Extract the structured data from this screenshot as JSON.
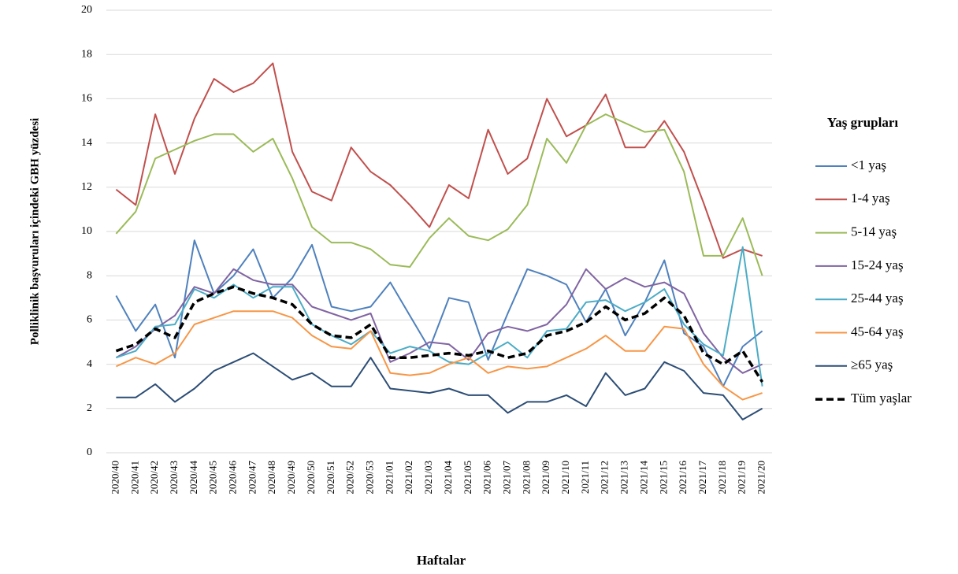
{
  "chart_data": {
    "type": "line",
    "y_label": "Polliklinik başvuruları içindeki GBH  yüzdesi",
    "x_label": "Haftalar",
    "legend_title": "Yaş grupları",
    "legend_position": "right",
    "grid": true,
    "categories": [
      "2020/40",
      "2020/41",
      "2020/42",
      "2020/43",
      "2020/44",
      "2020/45",
      "2020/46",
      "2020/47",
      "2020/48",
      "2020/49",
      "2020/50",
      "2020/51",
      "2020/52",
      "2020/53",
      "2021/01",
      "2021/02",
      "2021/03",
      "2021/04",
      "2021/05",
      "2021/06",
      "2021/07",
      "2021/08",
      "2021/09",
      "2021/10",
      "2021/11",
      "2021/12",
      "2021/13",
      "2021/14",
      "2021/15",
      "2021/16",
      "2021/17",
      "2021/18",
      "2021/19",
      "2021/20"
    ],
    "ylim": [
      0,
      20
    ],
    "yticks": [
      0,
      2,
      4,
      6,
      8,
      10,
      12,
      14,
      16,
      18,
      20
    ],
    "series": [
      {
        "name": "<1 yaş",
        "color": "#4f81bd",
        "values": [
          7.1,
          5.5,
          6.7,
          4.3,
          9.6,
          7.2,
          8.0,
          9.2,
          7.0,
          7.9,
          9.4,
          6.6,
          6.4,
          6.6,
          7.7,
          6.2,
          4.7,
          7.0,
          6.8,
          4.2,
          6.3,
          8.3,
          8.0,
          7.6,
          5.9,
          7.4,
          5.3,
          6.8,
          8.7,
          5.4,
          4.8,
          3.0,
          4.8,
          5.5
        ]
      },
      {
        "name": "1-4 yaş",
        "color": "#c0504d",
        "values": [
          11.9,
          11.2,
          15.3,
          12.6,
          15.1,
          16.9,
          16.3,
          16.7,
          17.6,
          13.6,
          11.8,
          11.4,
          13.8,
          12.7,
          12.1,
          11.2,
          10.2,
          12.1,
          11.5,
          14.6,
          12.6,
          13.3,
          16.0,
          14.3,
          14.8,
          16.2,
          13.8,
          13.8,
          15.0,
          13.6,
          11.3,
          8.8,
          9.2,
          8.9
        ]
      },
      {
        "name": "5-14 yaş",
        "color": "#9bbb59",
        "values": [
          9.9,
          10.9,
          13.3,
          13.7,
          14.1,
          14.4,
          14.4,
          13.6,
          14.2,
          12.4,
          10.2,
          9.5,
          9.5,
          9.2,
          8.5,
          8.4,
          9.7,
          10.6,
          9.8,
          9.6,
          10.1,
          11.2,
          14.2,
          13.1,
          14.8,
          15.3,
          14.9,
          14.5,
          14.6,
          12.7,
          8.9,
          8.9,
          10.6,
          8.0
        ]
      },
      {
        "name": "15-24 yaş",
        "color": "#8064a2",
        "values": [
          4.3,
          4.8,
          5.6,
          6.2,
          7.5,
          7.2,
          8.3,
          7.8,
          7.6,
          7.6,
          6.6,
          6.3,
          6.0,
          6.3,
          4.1,
          4.5,
          5.0,
          4.9,
          4.2,
          5.4,
          5.7,
          5.5,
          5.8,
          6.7,
          8.3,
          7.4,
          7.9,
          7.5,
          7.7,
          7.2,
          5.4,
          4.3,
          3.6,
          4.0
        ]
      },
      {
        "name": "25-44 yaş",
        "color": "#4bacc6",
        "values": [
          4.3,
          4.6,
          5.7,
          5.8,
          7.4,
          7.0,
          7.6,
          7.0,
          7.5,
          7.5,
          5.8,
          5.3,
          4.9,
          5.5,
          4.5,
          4.8,
          4.6,
          4.1,
          4.0,
          4.5,
          5.0,
          4.3,
          5.5,
          5.6,
          6.8,
          6.9,
          6.4,
          6.8,
          7.4,
          5.8,
          4.9,
          4.4,
          9.3,
          3.0
        ]
      },
      {
        "name": "45-64 yaş",
        "color": "#f79646",
        "values": [
          3.9,
          4.3,
          4.0,
          4.5,
          5.8,
          6.1,
          6.4,
          6.4,
          6.4,
          6.1,
          5.3,
          4.8,
          4.7,
          5.5,
          3.6,
          3.5,
          3.6,
          4.0,
          4.3,
          3.6,
          3.9,
          3.8,
          3.9,
          4.3,
          4.7,
          5.3,
          4.6,
          4.6,
          5.7,
          5.6,
          4.0,
          3.0,
          2.4,
          2.7
        ]
      },
      {
        "name": "≥65 yaş",
        "color": "#2c4d75",
        "values": [
          2.5,
          2.5,
          3.1,
          2.3,
          2.9,
          3.7,
          4.1,
          4.5,
          3.9,
          3.3,
          3.6,
          3.0,
          3.0,
          4.3,
          2.9,
          2.8,
          2.7,
          2.9,
          2.6,
          2.6,
          1.8,
          2.3,
          2.3,
          2.6,
          2.1,
          3.6,
          2.6,
          2.9,
          4.1,
          3.7,
          2.7,
          2.6,
          1.5,
          2.0
        ]
      },
      {
        "name": "Tüm yaşlar",
        "color": "#000000",
        "dashed": true,
        "values": [
          4.6,
          4.9,
          5.6,
          5.2,
          6.8,
          7.2,
          7.5,
          7.2,
          7.0,
          6.7,
          5.8,
          5.3,
          5.2,
          5.8,
          4.3,
          4.3,
          4.4,
          4.5,
          4.4,
          4.6,
          4.3,
          4.5,
          5.3,
          5.5,
          5.9,
          6.6,
          6.0,
          6.3,
          7.0,
          6.2,
          4.5,
          4.0,
          4.6,
          3.2
        ]
      }
    ]
  }
}
